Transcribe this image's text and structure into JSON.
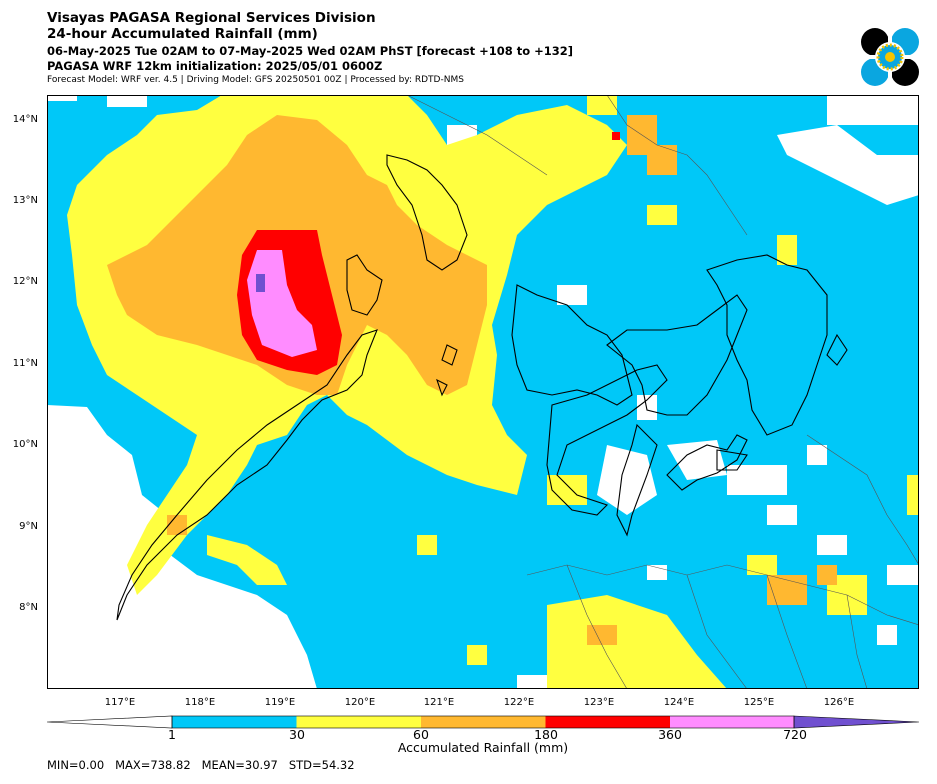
{
  "header": {
    "title": "Visayas PAGASA Regional Services Division",
    "subtitle": "24-hour Accumulated Rainfall (mm)",
    "period": "06-May-2025 Tue 02AM to 07-May-2025 Wed 02AM PhST [forecast +108 to +132]",
    "model_init": "PAGASA WRF 12km initialization: 2025/05/01 0600Z",
    "model_info": "Forecast Model: WRF ver. 4.5 | Driving Model: GFS 20250501 00Z | Processed by: RDTD-NMS"
  },
  "logo": {
    "icon": "pagasa-seal-icon",
    "colors": [
      "#000000",
      "#0aa6e0",
      "#f5c400"
    ]
  },
  "map": {
    "lat_ticks": [
      "14°N",
      "13°N",
      "12°N",
      "11°N",
      "10°N",
      "9°N",
      "8°N"
    ],
    "lon_ticks": [
      "117°E",
      "118°E",
      "119°E",
      "120°E",
      "121°E",
      "122°E",
      "123°E",
      "124°E",
      "125°E",
      "126°E"
    ],
    "colors": {
      "none": "#ffffff",
      "light": "#00c8f8",
      "moderate": "#ffff40",
      "heavy": "#ffb830",
      "intense": "#ff0000",
      "torrential": "#ff8cff",
      "extreme": "#7050d0"
    }
  },
  "colorbar": {
    "ticks": [
      "1",
      "30",
      "60",
      "180",
      "360",
      "720"
    ],
    "colors": [
      "#ffffff",
      "#00c8f8",
      "#ffff40",
      "#ffb830",
      "#ff0000",
      "#ff8cff",
      "#7050d0"
    ],
    "label": "Accumulated Rainfall (mm)"
  },
  "stats": {
    "text": "MIN=0.00   MAX=738.82   MEAN=30.97   STD=54.32"
  }
}
